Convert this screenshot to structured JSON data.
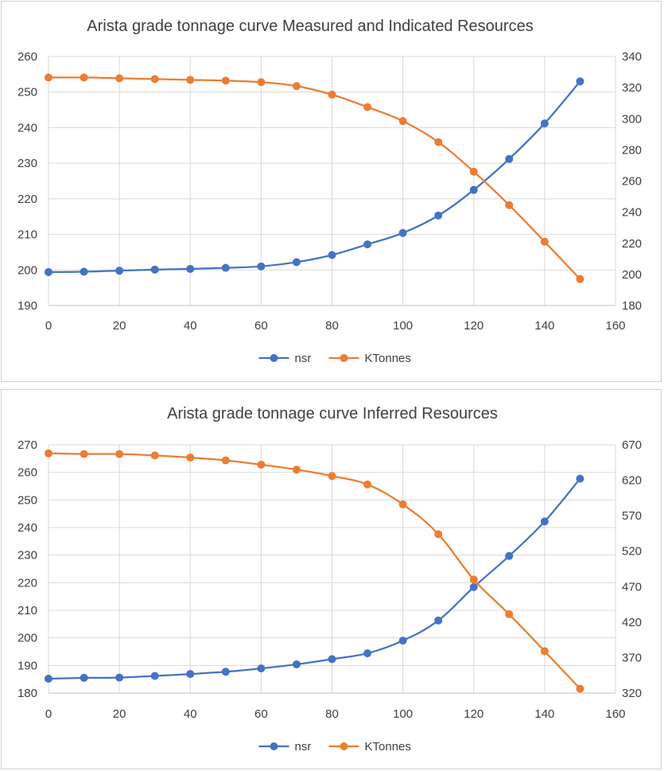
{
  "chart_data": [
    {
      "type": "line",
      "title": "Arista grade tonnage curve Measured and Indicated Resources",
      "x": [
        0,
        10,
        20,
        30,
        40,
        50,
        60,
        70,
        80,
        90,
        100,
        110,
        120,
        130,
        140,
        150
      ],
      "xlim": [
        0,
        160
      ],
      "x_ticks": [
        0,
        20,
        40,
        60,
        80,
        100,
        120,
        140,
        160
      ],
      "y_left": {
        "lim": [
          190,
          260
        ],
        "ticks": [
          190,
          200,
          210,
          220,
          230,
          240,
          250,
          260
        ]
      },
      "y_right": {
        "lim": [
          180,
          340
        ],
        "ticks": [
          180,
          200,
          220,
          240,
          260,
          280,
          300,
          320,
          340
        ]
      },
      "grid": true,
      "legend": "bottom",
      "series": [
        {
          "name": "nsr",
          "axis": "left",
          "color": "#4472C4",
          "values": [
            199.4,
            199.5,
            199.8,
            200.1,
            200.3,
            200.6,
            201.0,
            202.2,
            204.2,
            207.2,
            210.4,
            215.3,
            222.5,
            231.2,
            241.2,
            253.0
          ]
        },
        {
          "name": "KTonnes",
          "axis": "right",
          "color": "#ED7D31",
          "values": [
            326.5,
            326.5,
            326.0,
            325.5,
            325.0,
            324.5,
            323.5,
            321.0,
            315.5,
            307.5,
            298.5,
            285.0,
            266.0,
            244.5,
            221.0,
            197.0
          ]
        }
      ]
    },
    {
      "type": "line",
      "title": "Arista grade tonnage curve Inferred Resources",
      "x": [
        0,
        10,
        20,
        30,
        40,
        50,
        60,
        70,
        80,
        90,
        100,
        110,
        120,
        130,
        140,
        150
      ],
      "xlim": [
        0,
        160
      ],
      "x_ticks": [
        0,
        20,
        40,
        60,
        80,
        100,
        120,
        140,
        160
      ],
      "y_left": {
        "lim": [
          180,
          270
        ],
        "ticks": [
          180,
          190,
          200,
          210,
          220,
          230,
          240,
          250,
          260,
          270
        ]
      },
      "y_right": {
        "lim": [
          320,
          670
        ],
        "ticks": [
          320,
          370,
          420,
          470,
          520,
          570,
          620,
          670
        ]
      },
      "grid": true,
      "legend": "bottom",
      "series": [
        {
          "name": "nsr",
          "axis": "left",
          "color": "#4472C4",
          "values": [
            185.2,
            185.5,
            185.6,
            186.2,
            186.9,
            187.7,
            188.9,
            190.4,
            192.3,
            194.4,
            199.0,
            206.3,
            218.4,
            229.7,
            242.2,
            257.7
          ]
        },
        {
          "name": "KTonnes",
          "axis": "right",
          "color": "#ED7D31",
          "values": [
            658,
            657,
            657,
            655,
            652,
            648,
            642,
            635,
            626,
            614,
            586,
            544,
            480,
            431,
            379,
            326
          ]
        }
      ]
    }
  ]
}
